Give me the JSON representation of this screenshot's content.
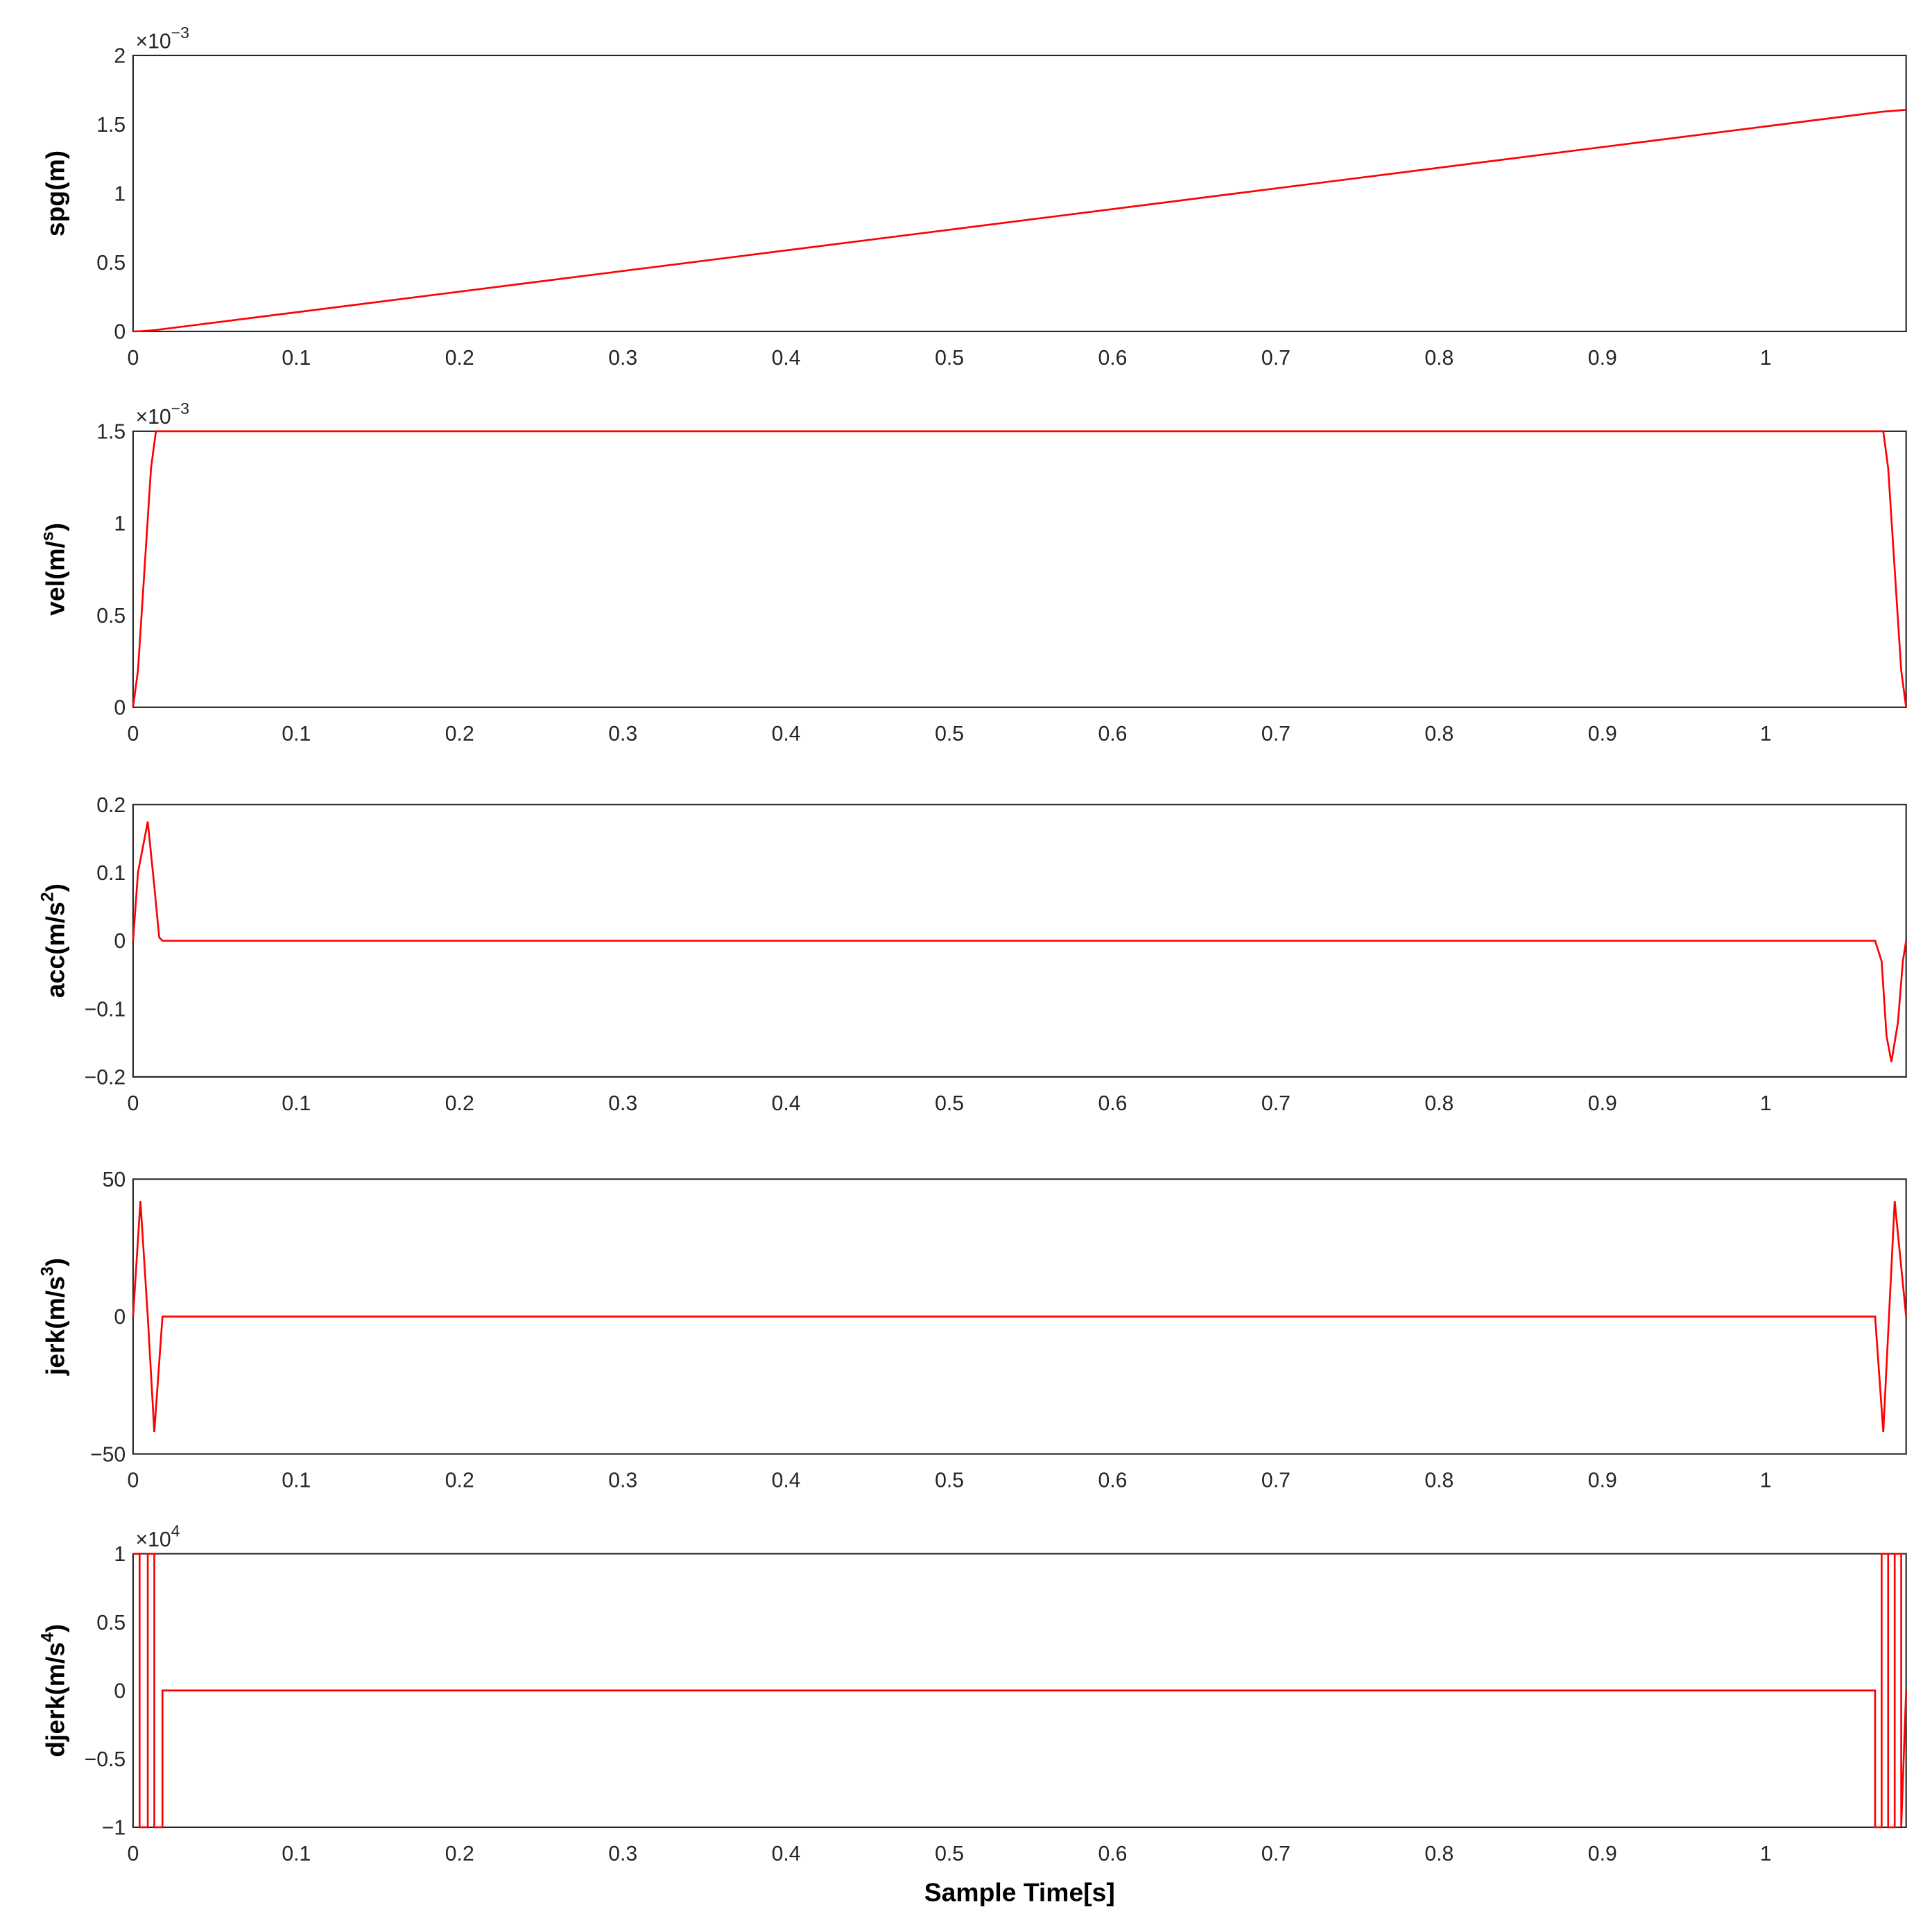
{
  "chart_data": [
    {
      "type": "line",
      "ylabel": {
        "text": "spg(m)"
      },
      "multiplier": {
        "base": "×10",
        "exponent": "−3"
      },
      "x": [
        0,
        0.005,
        0.01,
        0.015,
        0.5,
        1.0,
        1.071,
        1.086
      ],
      "values": [
        0,
        0.002,
        0.006,
        0.012,
        0.737,
        1.486,
        1.592,
        1.606
      ],
      "color": "#ff0000",
      "xlim": [
        0,
        1.086
      ],
      "ylim": [
        0,
        2
      ],
      "xticks": [
        0,
        0.1,
        0.2,
        0.3,
        0.4,
        0.5,
        0.6,
        0.7,
        0.8,
        0.9,
        1
      ],
      "yticks": [
        0,
        0.5,
        1,
        1.5,
        2
      ],
      "grid": true
    },
    {
      "type": "line",
      "ylabel": {
        "text": "vel(m/",
        "sup": "s",
        "tail": ")"
      },
      "multiplier": {
        "base": "×10",
        "exponent": "−3"
      },
      "x": [
        0,
        0.003,
        0.007,
        0.011,
        0.014,
        1.072,
        1.075,
        1.079,
        1.083,
        1.086
      ],
      "values": [
        0,
        0.2,
        0.75,
        1.3,
        1.5,
        1.5,
        1.3,
        0.75,
        0.2,
        0
      ],
      "color": "#ff0000",
      "xlim": [
        0,
        1.086
      ],
      "ylim": [
        0,
        1.5
      ],
      "xticks": [
        0,
        0.1,
        0.2,
        0.3,
        0.4,
        0.5,
        0.6,
        0.7,
        0.8,
        0.9,
        1
      ],
      "yticks": [
        0,
        0.5,
        1,
        1.5
      ],
      "grid": true
    },
    {
      "type": "line",
      "ylabel": {
        "text": "acc(m/s",
        "sup": "2",
        "tail": ")"
      },
      "x": [
        0,
        0.003,
        0.009,
        0.013,
        0.016,
        0.018,
        1.067,
        1.071,
        1.074,
        1.077,
        1.081,
        1.084,
        1.086
      ],
      "values": [
        0,
        0.1,
        0.175,
        0.08,
        0.005,
        0,
        0,
        -0.03,
        -0.14,
        -0.178,
        -0.12,
        -0.03,
        0
      ],
      "color": "#ff0000",
      "xlim": [
        0,
        1.086
      ],
      "ylim": [
        -0.2,
        0.2
      ],
      "xticks": [
        0,
        0.1,
        0.2,
        0.3,
        0.4,
        0.5,
        0.6,
        0.7,
        0.8,
        0.9,
        1
      ],
      "yticks": [
        {
          "value": -0.2,
          "label": "−0.2"
        },
        {
          "value": -0.1,
          "label": "−0.1"
        },
        0,
        0.1,
        0.2
      ],
      "grid": true
    },
    {
      "type": "line",
      "ylabel": {
        "text": "jerk(m/s",
        "sup": "3",
        "tail": ")"
      },
      "x": [
        0,
        0.0045,
        0.009,
        0.013,
        0.018,
        1.067,
        1.072,
        1.0755,
        1.079,
        1.086
      ],
      "values": [
        0,
        42,
        0,
        -42,
        0,
        0,
        -42,
        0,
        42,
        0
      ],
      "color": "#ff0000",
      "xlim": [
        0,
        1.086
      ],
      "ylim": [
        -50,
        50
      ],
      "xticks": [
        0,
        0.1,
        0.2,
        0.3,
        0.4,
        0.5,
        0.6,
        0.7,
        0.8,
        0.9,
        1
      ],
      "yticks": [
        {
          "value": -50,
          "label": "−50"
        },
        0,
        50
      ],
      "grid": true
    },
    {
      "type": "line",
      "ylabel": {
        "text": "djerk(m/s",
        "sup": "4",
        "tail": ")"
      },
      "multiplier": {
        "base": "×10",
        "exponent": "4"
      },
      "xlabel": "Sample Time[s]",
      "x": [
        0,
        0.004,
        0.004,
        0.009,
        0.009,
        0.013,
        0.013,
        0.018,
        0.018,
        1.067,
        1.067,
        1.071,
        1.071,
        1.075,
        1.075,
        1.079,
        1.079,
        1.083,
        1.083,
        1.086
      ],
      "values": [
        1,
        1,
        -1,
        -1,
        1,
        1,
        -1,
        -1,
        0,
        0,
        -1,
        -1,
        1,
        1,
        -1,
        -1,
        1,
        1,
        -1,
        0
      ],
      "color": "#ff0000",
      "xlim": [
        0,
        1.086
      ],
      "ylim": [
        -1,
        1
      ],
      "xticks": [
        0,
        0.1,
        0.2,
        0.3,
        0.4,
        0.5,
        0.6,
        0.7,
        0.8,
        0.9,
        1
      ],
      "yticks": [
        {
          "value": -1,
          "label": "−1"
        },
        {
          "value": -0.5,
          "label": "−0.5"
        },
        0,
        0.5,
        1
      ],
      "grid": true
    }
  ]
}
